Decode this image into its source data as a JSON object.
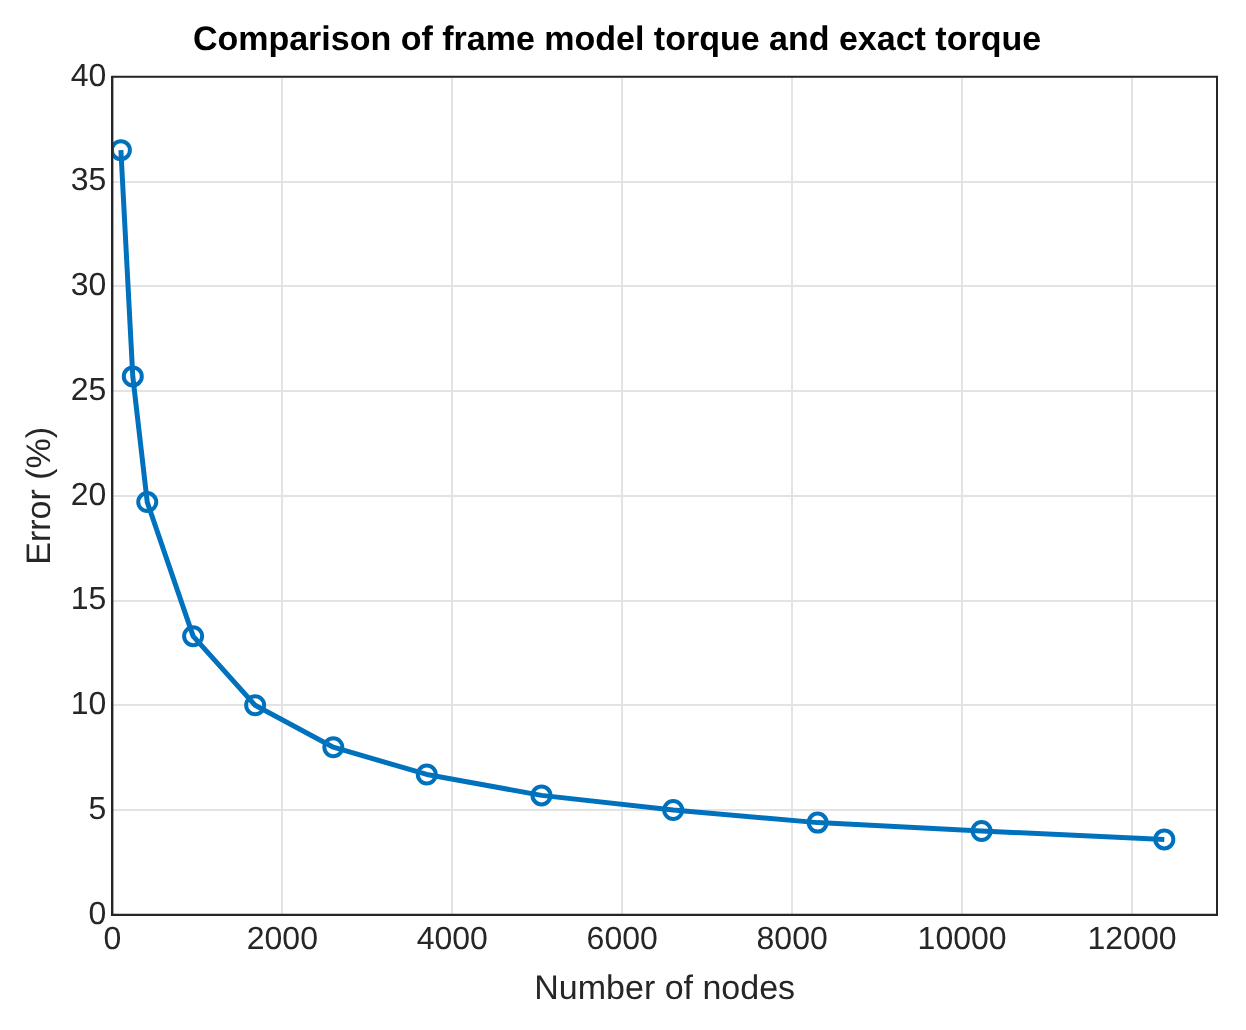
{
  "chart_data": {
    "type": "line",
    "title": "Comparison of frame model torque and exact torque",
    "xlabel": "Number of nodes",
    "ylabel": "Error (%)",
    "x": [
      100,
      240,
      410,
      950,
      1680,
      2600,
      3700,
      5050,
      6600,
      8300,
      10230,
      12380
    ],
    "series": [
      {
        "color": "#0072bd",
        "values": [
          36.5,
          25.7,
          19.7,
          13.3,
          10.0,
          8.0,
          6.7,
          5.7,
          5.0,
          4.4,
          4.0,
          3.6
        ]
      }
    ],
    "xlim": [
      0,
      13000
    ],
    "xticks": [
      0,
      2000,
      4000,
      6000,
      8000,
      10000,
      12000
    ],
    "ylim": [
      0,
      40
    ],
    "yticks": [
      0,
      5,
      10,
      15,
      20,
      25,
      30,
      35,
      40
    ],
    "grid": true,
    "legend": false,
    "marker": "circle",
    "line_style": "solid"
  }
}
